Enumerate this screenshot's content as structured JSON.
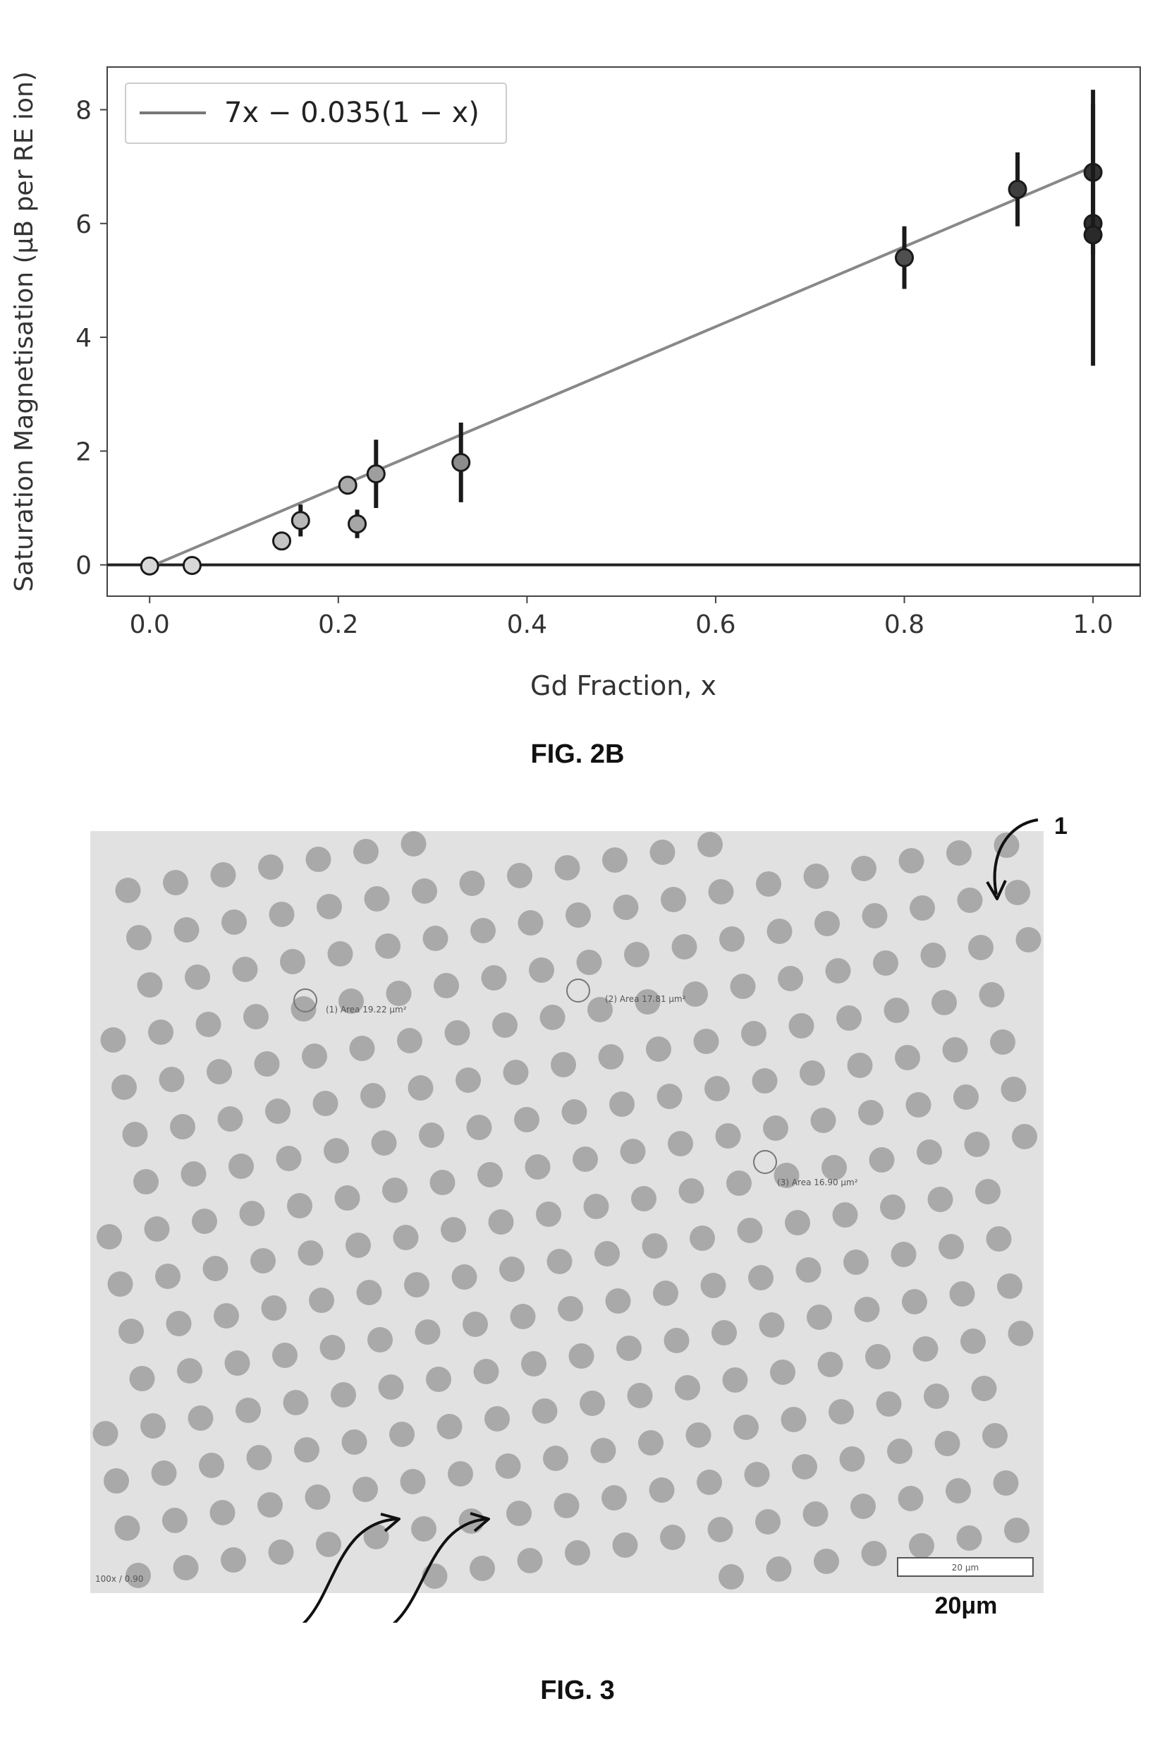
{
  "figure_2b": {
    "caption": "FIG. 2B",
    "chart_data": {
      "type": "scatter",
      "xlabel": "Gd Fraction, x",
      "ylabel": "Saturation Magnetisation (μB per RE ion)",
      "xlim": [
        -0.045,
        1.05
      ],
      "ylim": [
        -0.55,
        8.75
      ],
      "x_ticks": [
        "0.0",
        "0.2",
        "0.4",
        "0.6",
        "0.8",
        "1.0"
      ],
      "y_ticks": [
        "0",
        "2",
        "4",
        "6",
        "8"
      ],
      "legend": {
        "entry": "7x − 0.035(1 − x)",
        "placement": "upper-left"
      },
      "fit_line": {
        "slope": 7.035,
        "intercept": -0.035
      },
      "zero_line": 0,
      "grid": false,
      "points": [
        {
          "x": 0.0,
          "y": -0.02,
          "err": 0.0,
          "shade": "#d8d8d8"
        },
        {
          "x": 0.045,
          "y": -0.01,
          "err": 0.0,
          "shade": "#d8d8d8"
        },
        {
          "x": 0.14,
          "y": 0.42,
          "err": 0.0,
          "shade": "#c4c4c4"
        },
        {
          "x": 0.16,
          "y": 0.78,
          "err": 0.28,
          "shade": "#b8b8b8"
        },
        {
          "x": 0.21,
          "y": 1.4,
          "err": 0.0,
          "shade": "#ababab"
        },
        {
          "x": 0.22,
          "y": 0.72,
          "err": 0.25,
          "shade": "#a6a6a6"
        },
        {
          "x": 0.24,
          "y": 1.6,
          "err": 0.6,
          "shade": "#9e9e9e"
        },
        {
          "x": 0.33,
          "y": 1.8,
          "err": 0.7,
          "shade": "#8c8c8c"
        },
        {
          "x": 0.8,
          "y": 5.4,
          "err": 0.55,
          "shade": "#4f4f4f"
        },
        {
          "x": 0.92,
          "y": 6.6,
          "err": 0.65,
          "shade": "#3e3e3e"
        },
        {
          "x": 1.0,
          "y": 6.9,
          "err": 1.45,
          "shade": "#333333"
        },
        {
          "x": 1.0,
          "y": 6.0,
          "err": 0.0,
          "shade": "#2e2e2e"
        },
        {
          "x": 1.0,
          "y": 5.8,
          "err": 2.3,
          "shade": "#2a2a2a"
        }
      ]
    }
  },
  "figure_3": {
    "caption": "FIG. 3",
    "area_labels": [
      "(1) Area 19.22 μm²",
      "(2) Area 17.81 μm²",
      "(3) Area 16.90 μm²"
    ],
    "footer_label": "100x / 0.90",
    "scale_bar_inner": "20 μm",
    "scale_bar_label": "20μm",
    "reference_numeral": "1",
    "colors": {
      "background": "#e1e1e1",
      "dot": "#a9a9a9"
    }
  }
}
